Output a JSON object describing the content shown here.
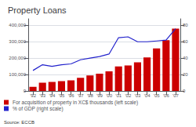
{
  "chart_data": {
    "type": "bar",
    "title": "Property Loans",
    "annotations": [
      "Source: ECCB"
    ],
    "categories": [
      "'92",
      "'93",
      "'94",
      "'95",
      "'96",
      "'97",
      "'98",
      "'99",
      "'00",
      "'01",
      "'02",
      "'03",
      "'04",
      "'05",
      "'06",
      "'07"
    ],
    "series": [
      {
        "name": "For acquisition of property in XC$ thousands (left scale)",
        "type": "bar",
        "color": "#cc0000",
        "values": [
          25000,
          50000,
          55000,
          60000,
          65000,
          80000,
          95000,
          105000,
          120000,
          150000,
          155000,
          175000,
          205000,
          260000,
          310000,
          380000
        ]
      },
      {
        "name": "% of GDP (right scale)",
        "type": "line",
        "color": "#2222cc",
        "axis": "y2",
        "values": [
          25,
          32,
          30,
          32,
          33,
          38,
          40,
          42,
          45,
          65,
          66,
          60,
          60,
          61,
          62,
          76
        ]
      }
    ],
    "ylim": [
      0,
      440000
    ],
    "yticks": [
      0,
      {
        "value": 100000,
        "label": "100,000"
      },
      {
        "value": 200000,
        "label": "200,000"
      },
      {
        "value": 300000,
        "label": "300,000"
      },
      {
        "value": 400000,
        "label": "400,000"
      }
    ],
    "y2lim": [
      0,
      88
    ],
    "y2ticks": [
      0,
      20,
      40,
      60,
      80
    ],
    "grid": true,
    "legend": "bottom"
  }
}
